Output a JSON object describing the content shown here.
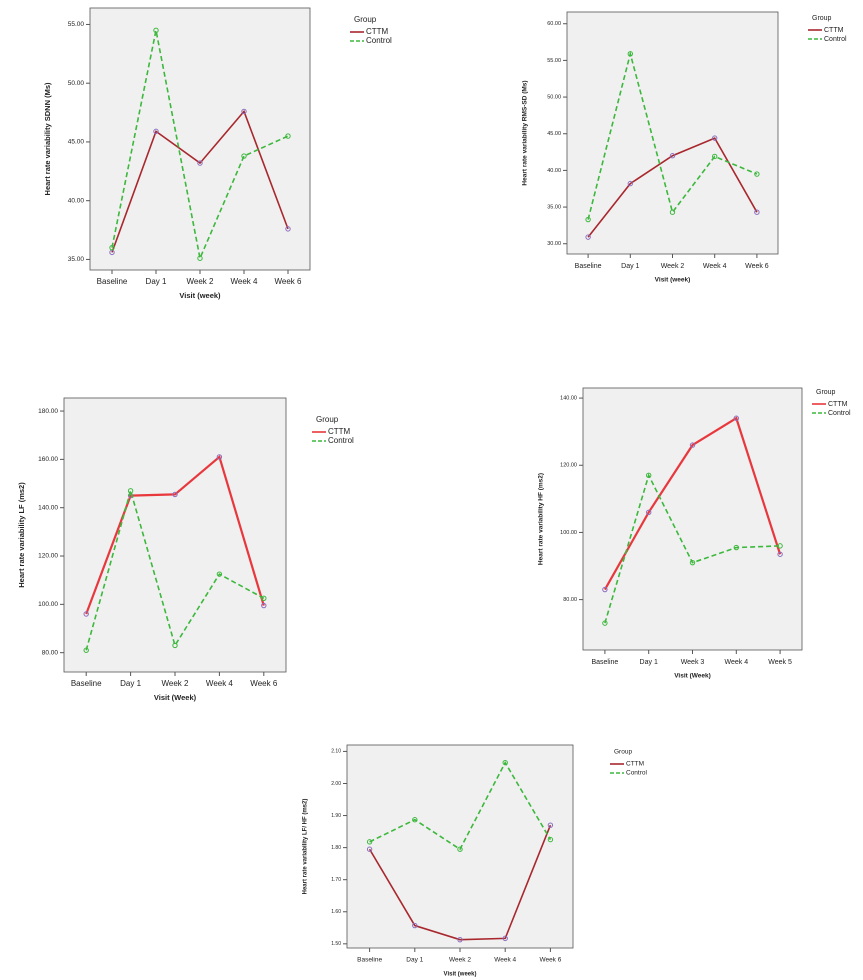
{
  "chart_data": [
    {
      "type": "line",
      "y_label": "Heart rate variability SDNN  (Ms)",
      "x_label": "Visit (week)",
      "legend_title": "Group",
      "categories": [
        "Baseline",
        "Day 1",
        "Week 2",
        "Week 4",
        "Week 6"
      ],
      "series": [
        {
          "name": "CTTM",
          "color": "#a8282e",
          "marker_color": "#8a6fc0",
          "dashed": false,
          "values": [
            35.6,
            45.9,
            43.2,
            47.6,
            37.6
          ]
        },
        {
          "name": "Control",
          "color": "#3cb83c",
          "marker_color": "#3cb83c",
          "dashed": true,
          "values": [
            36.0,
            54.5,
            35.1,
            43.8,
            45.5
          ]
        }
      ],
      "ylim": [
        34.1,
        56.4
      ],
      "yticks": [
        {
          "value": 35,
          "label": "35.00"
        },
        {
          "value": 40,
          "label": "40.00"
        },
        {
          "value": 45,
          "label": "45.00"
        },
        {
          "value": 50,
          "label": "50.00"
        },
        {
          "value": 55,
          "label": "55.00"
        }
      ]
    },
    {
      "type": "line",
      "y_label": "Heart rate variability RMS-SD (Ms)",
      "x_label": "Visit (week)",
      "legend_title": "Group",
      "categories": [
        "Baseline",
        "Day 1",
        "Week 2",
        "Week 4",
        "Week 6"
      ],
      "series": [
        {
          "name": "CTTM",
          "color": "#a8282e",
          "marker_color": "#8a6fc0",
          "dashed": false,
          "values": [
            30.9,
            38.2,
            42.0,
            44.4,
            34.3
          ]
        },
        {
          "name": "Control",
          "color": "#3cb83c",
          "marker_color": "#3cb83c",
          "dashed": true,
          "values": [
            33.3,
            55.9,
            34.3,
            41.9,
            39.5
          ]
        }
      ],
      "ylim": [
        28.6,
        61.6
      ],
      "yticks": [
        {
          "value": 30,
          "label": "30.00"
        },
        {
          "value": 35,
          "label": "35.00"
        },
        {
          "value": 40,
          "label": "40.00"
        },
        {
          "value": 45,
          "label": "45.00"
        },
        {
          "value": 50,
          "label": "50.00"
        },
        {
          "value": 55,
          "label": "55.00"
        },
        {
          "value": 60,
          "label": "60.00"
        }
      ]
    },
    {
      "type": "line",
      "y_label": "Heart rate variability LF (ms2)",
      "x_label": "Visit (Week)",
      "legend_title": "Group",
      "categories": [
        "Baseline",
        "Day 1",
        "Week 2",
        "Week 4",
        "Week 6"
      ],
      "series": [
        {
          "name": "CTTM",
          "color": "#e8383d",
          "marker_color": "#8a6fc0",
          "dashed": false,
          "values": [
            96,
            145,
            145.5,
            161,
            99.5
          ]
        },
        {
          "name": "Control",
          "color": "#3cb83c",
          "marker_color": "#3cb83c",
          "dashed": true,
          "values": [
            81,
            147,
            83,
            112.5,
            102.5
          ]
        }
      ],
      "ylim": [
        72,
        185.4
      ],
      "yticks": [
        {
          "value": 80,
          "label": "80.00"
        },
        {
          "value": 100,
          "label": "100.00"
        },
        {
          "value": 120,
          "label": "120.00"
        },
        {
          "value": 140,
          "label": "140.00"
        },
        {
          "value": 160,
          "label": "160.00"
        },
        {
          "value": 180,
          "label": "180.00"
        }
      ]
    },
    {
      "type": "line",
      "y_label": "Heart rate variability HF (ms2)",
      "x_label": "Visit (Week)",
      "legend_title": "Group",
      "categories": [
        "Baseline",
        "Day 1",
        "Week 3",
        "Week 4",
        "Week 5"
      ],
      "series": [
        {
          "name": "CTTM",
          "color": "#e8383d",
          "marker_color": "#8a6fc0",
          "dashed": false,
          "values": [
            83,
            106,
            126,
            134,
            93.5
          ]
        },
        {
          "name": "Control",
          "color": "#3cb83c",
          "marker_color": "#3cb83c",
          "dashed": true,
          "values": [
            73,
            117,
            91,
            95.5,
            96
          ]
        }
      ],
      "ylim": [
        65,
        143
      ],
      "yticks": [
        {
          "value": 80,
          "label": "80.00"
        },
        {
          "value": 100,
          "label": "100.00"
        },
        {
          "value": 120,
          "label": "120.00"
        },
        {
          "value": 140,
          "label": "140.00"
        }
      ]
    },
    {
      "type": "line",
      "y_label": "Heart rate variability LF/ HF (ms2)",
      "x_label": "Visit (week)",
      "legend_title": "Group",
      "categories": [
        "Baseline",
        "Day 1",
        "Week 2",
        "Week 4",
        "Week 6"
      ],
      "series": [
        {
          "name": "CTTM",
          "color": "#a8282e",
          "marker_color": "#8a6fc0",
          "dashed": false,
          "values": [
            1.795,
            1.557,
            1.513,
            1.517,
            1.87
          ]
        },
        {
          "name": "Control",
          "color": "#3cb83c",
          "marker_color": "#3cb83c",
          "dashed": true,
          "values": [
            1.818,
            1.887,
            1.795,
            2.065,
            1.825
          ]
        }
      ],
      "ylim": [
        1.487,
        2.12
      ],
      "yticks": [
        {
          "value": 1.5,
          "label": "1.50"
        },
        {
          "value": 1.6,
          "label": "1.60"
        },
        {
          "value": 1.7,
          "label": "1.70"
        },
        {
          "value": 1.8,
          "label": "1.80"
        },
        {
          "value": 1.9,
          "label": "1.90"
        },
        {
          "value": 2.0,
          "label": "2.00"
        },
        {
          "value": 2.1,
          "label": "2.10"
        }
      ]
    }
  ]
}
